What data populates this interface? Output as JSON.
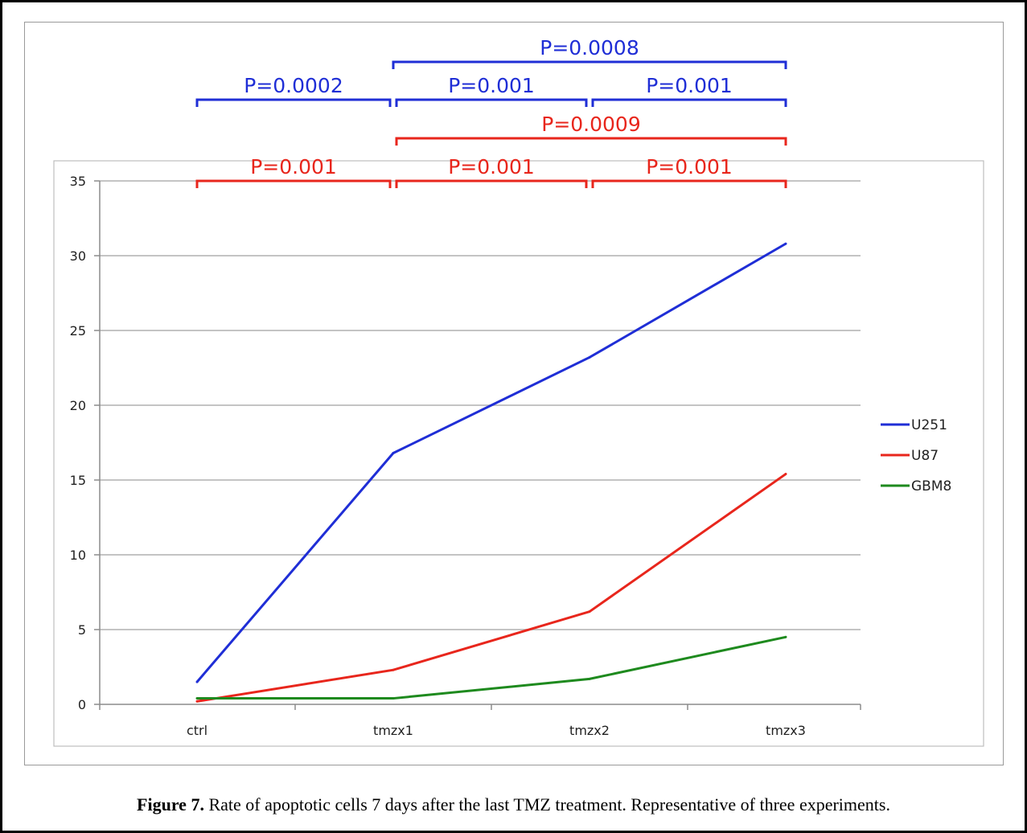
{
  "chart_data": {
    "type": "line",
    "categories": [
      "ctrl",
      "tmzx1",
      "tmzx2",
      "tmzx3"
    ],
    "ylim": [
      0,
      35
    ],
    "yticks": [
      0,
      5,
      10,
      15,
      20,
      25,
      30,
      35
    ],
    "grid": true,
    "legend_position": "right",
    "series": [
      {
        "name": "U251",
        "color": "#1f2ed6",
        "values": [
          1.5,
          16.8,
          23.2,
          30.8
        ]
      },
      {
        "name": "U87",
        "color": "#e8261c",
        "values": [
          0.2,
          2.3,
          6.2,
          15.4
        ]
      },
      {
        "name": "GBM8",
        "color": "#1e8a1e",
        "values": [
          0.4,
          0.4,
          1.7,
          4.5
        ]
      }
    ],
    "annotations": [
      {
        "label": "P=0.0002",
        "from": 0,
        "to": 1,
        "level": 1,
        "color": "#1f2ed6"
      },
      {
        "label": "P=0.001",
        "from": 1,
        "to": 2,
        "level": 1,
        "color": "#1f2ed6"
      },
      {
        "label": "P=0.001",
        "from": 2,
        "to": 3,
        "level": 1,
        "color": "#1f2ed6"
      },
      {
        "label": "P=0.0008",
        "from": 1,
        "to": 3,
        "level": 2,
        "color": "#1f2ed6"
      },
      {
        "label": "P=0.001",
        "from": 0,
        "to": 1,
        "level": -1,
        "color": "#e8261c"
      },
      {
        "label": "P=0.001",
        "from": 1,
        "to": 2,
        "level": -1,
        "color": "#e8261c"
      },
      {
        "label": "P=0.001",
        "from": 2,
        "to": 3,
        "level": -1,
        "color": "#e8261c"
      },
      {
        "label": "P=0.0009",
        "from": 1,
        "to": 3,
        "level": 0,
        "color": "#e8261c"
      }
    ]
  },
  "caption": {
    "label": "Figure 7.",
    "text": " Rate of apoptotic cells 7 days after the last TMZ treatment. Representative of three experiments."
  }
}
